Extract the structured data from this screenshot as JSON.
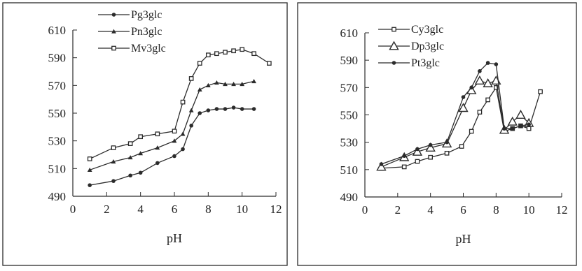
{
  "chart_data": [
    {
      "type": "line",
      "title": "",
      "xlabel": "pH",
      "ylabel": "",
      "xlim": [
        0,
        12
      ],
      "ylim": [
        490,
        610
      ],
      "xticks": [
        0,
        2,
        4,
        6,
        8,
        10,
        12
      ],
      "yticks": [
        490,
        510,
        530,
        550,
        570,
        590,
        610
      ],
      "legend_position": "top-left",
      "grid": false,
      "series": [
        {
          "name": "Pg3glc",
          "marker": "circle",
          "x": [
            1.0,
            2.4,
            3.4,
            4.0,
            5.0,
            6.0,
            6.5,
            7.0,
            7.5,
            8.0,
            8.5,
            9.0,
            9.5,
            10.0,
            10.7
          ],
          "y": [
            498,
            501,
            505,
            507,
            514,
            519,
            524,
            541,
            550,
            552,
            553,
            553,
            554,
            553,
            553
          ]
        },
        {
          "name": "Pn3glc",
          "marker": "triangle",
          "x": [
            1.0,
            2.4,
            3.4,
            4.0,
            5.0,
            6.0,
            6.5,
            7.0,
            7.5,
            8.0,
            8.5,
            9.0,
            9.5,
            10.0,
            10.7
          ],
          "y": [
            509,
            515,
            518,
            521,
            525,
            530,
            535,
            552,
            567,
            570,
            572,
            571,
            571,
            571,
            573
          ]
        },
        {
          "name": "Mv3glc",
          "marker": "square",
          "x": [
            1.0,
            2.4,
            3.4,
            4.0,
            5.0,
            6.0,
            6.5,
            7.0,
            7.5,
            8.0,
            8.5,
            9.0,
            9.5,
            10.0,
            10.7,
            11.6
          ],
          "y": [
            517,
            525,
            528,
            533,
            535,
            537,
            558,
            575,
            586,
            592,
            593,
            594,
            595,
            596,
            593,
            586
          ]
        }
      ]
    },
    {
      "type": "line",
      "title": "",
      "xlabel": "pH",
      "ylabel": "",
      "xlim": [
        0,
        12
      ],
      "ylim": [
        490,
        610
      ],
      "xticks": [
        0,
        2,
        4,
        6,
        8,
        10,
        12
      ],
      "yticks": [
        490,
        510,
        530,
        550,
        570,
        590,
        610
      ],
      "legend_position": "top-left",
      "grid": false,
      "series": [
        {
          "name": "Cy3glc",
          "marker": "square",
          "x": [
            1.0,
            2.4,
            3.2,
            4.0,
            5.0,
            5.9,
            6.5,
            7.0,
            7.5,
            8.0,
            8.5,
            9.0,
            9.5,
            10.0,
            10.7
          ],
          "y": [
            511,
            512,
            516,
            519,
            522,
            527,
            538,
            552,
            561,
            570,
            538,
            540,
            542,
            540,
            567
          ]
        },
        {
          "name": "Dp3glc",
          "marker": "open-triangle",
          "x": [
            1.0,
            2.4,
            3.2,
            4.0,
            5.0,
            6.0,
            6.5,
            7.0,
            7.5,
            8.0,
            8.5,
            9.0,
            9.5,
            10.0
          ],
          "y": [
            512,
            519,
            523,
            526,
            529,
            555,
            568,
            575,
            573,
            575,
            539,
            545,
            550,
            544
          ]
        },
        {
          "name": "Pt3glc",
          "marker": "circle",
          "x": [
            1.0,
            2.4,
            3.2,
            4.0,
            5.0,
            6.0,
            6.5,
            7.0,
            7.5,
            8.0,
            8.5,
            9.0,
            9.5,
            10.0
          ],
          "y": [
            514,
            520,
            525,
            528,
            530,
            563,
            570,
            582,
            588,
            587,
            540,
            540,
            542,
            543
          ]
        }
      ]
    }
  ]
}
